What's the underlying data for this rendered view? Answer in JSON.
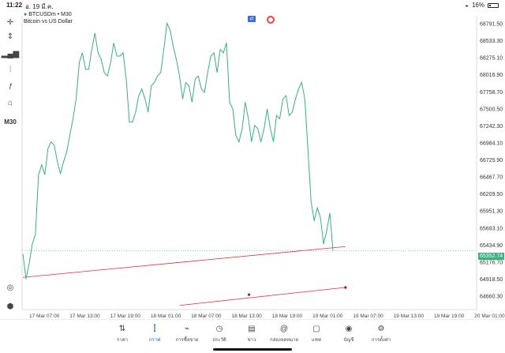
{
  "status_bar": {
    "time": "11:22",
    "date": "อ. 19 มี.ค.",
    "battery": "16%"
  },
  "symbol": {
    "ticker": "BTCUSDm",
    "timeframe_header": "M30",
    "name": "Bitcoin vs US Dollar"
  },
  "toolbar": {
    "timeframe": "M30"
  },
  "price_axis": [
    "68791.50",
    "68533.30",
    "68275.10",
    "68016.90",
    "67758.70",
    "67500.50",
    "67242.30",
    "66984.10",
    "66725.90",
    "66467.70",
    "66209.50",
    "65951.30",
    "65693.10",
    "65434.90",
    "65176.70",
    "64918.50",
    "64660.30"
  ],
  "current_price": "65352.74",
  "time_axis": [
    "17 Mar 07:00",
    "17 Mar 13:00",
    "17 Mar 19:00",
    "18 Mar 01:00",
    "18 Mar 07:00",
    "18 Mar 13:00",
    "18 Mar 19:00",
    "19 Mar 01:00",
    "19 Mar 07:00",
    "19 Mar 13:00",
    "19 Mar 19:00",
    "20 Mar 01:00"
  ],
  "nav": [
    {
      "label": "ราคา",
      "icon": "quotes-icon"
    },
    {
      "label": "กราฟ",
      "icon": "chart-icon",
      "active": true
    },
    {
      "label": "การซื้อขาย",
      "icon": "trade-icon"
    },
    {
      "label": "ประวัติ",
      "icon": "history-icon"
    },
    {
      "label": "ข่าว",
      "icon": "news-icon"
    },
    {
      "label": "กล่องจดหมาย",
      "icon": "mailbox-icon"
    },
    {
      "label": "แชท",
      "icon": "chat-icon"
    },
    {
      "label": "บัญชี",
      "icon": "account-icon"
    },
    {
      "label": "การตั้งค่า",
      "icon": "settings-icon"
    }
  ],
  "chart_data": {
    "type": "line",
    "title": "BTCUSDm, M30",
    "ylim": [
      64660.3,
      68791.5
    ],
    "series": [
      {
        "name": "BTCUSDm",
        "color": "#3aaf7f",
        "values": [
          65300,
          64920,
          65150,
          65450,
          65600,
          66500,
          66650,
          66500,
          66900,
          67000,
          66950,
          66700,
          66520,
          66700,
          66850,
          67100,
          67350,
          67650,
          68200,
          68350,
          68100,
          68100,
          68400,
          68650,
          68350,
          68250,
          68050,
          68000,
          68200,
          68500,
          68300,
          68300,
          68350,
          67950,
          67300,
          67300,
          67450,
          67700,
          67800,
          67650,
          67450,
          67850,
          67900,
          68000,
          68050,
          68400,
          68800,
          68700,
          68450,
          68250,
          68000,
          67650,
          67900,
          67850,
          67600,
          67950,
          68000,
          67800,
          67750,
          68050,
          68300,
          68350,
          68050,
          68400,
          68350,
          68500,
          67600,
          67500,
          67100,
          67000,
          67200,
          67600,
          67350,
          67000,
          67250,
          67200,
          67000,
          67200,
          67500,
          67200,
          67000,
          67400,
          67350,
          67650,
          67700,
          67400,
          67450,
          67650,
          67800,
          67900,
          67650,
          66900,
          66100,
          65800,
          66000,
          65850,
          65450,
          65650,
          65920,
          65350
        ]
      }
    ],
    "trendlines": [
      {
        "color": "#e03030",
        "from": [
          0,
          64945
        ],
        "to": [
          103,
          65412
        ]
      },
      {
        "color": "#e03030",
        "from": [
          50,
          64520
        ],
        "to": [
          103,
          64792
        ]
      }
    ],
    "current_price_line": 65352.74,
    "grid": false
  }
}
